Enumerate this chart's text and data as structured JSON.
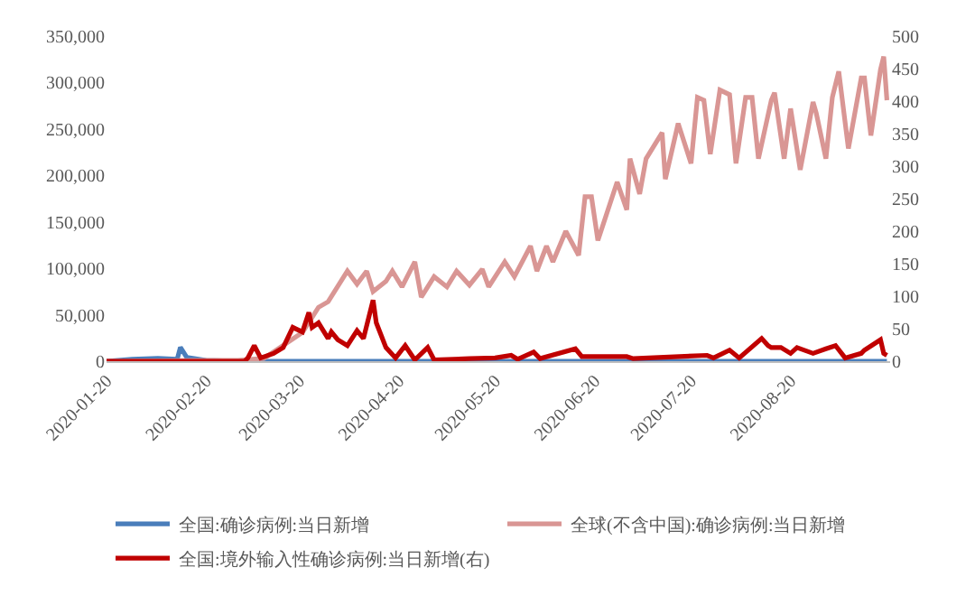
{
  "chart_data": {
    "type": "line",
    "series": [
      {
        "name": "全国:确诊病例:当日新增",
        "color": "#4a7ebb",
        "x": [
          "2020-01-20",
          "2020-01-28",
          "2020-02-05",
          "2020-02-11",
          "2020-02-12",
          "2020-02-14",
          "2020-02-20",
          "2020-03-01",
          "2020-03-20",
          "2020-09-19"
        ],
        "values": [
          0,
          2000,
          3000,
          2000,
          15000,
          4000,
          1000,
          0,
          0,
          0
        ]
      },
      {
        "name": "全球(不含中国):确诊病例:当日新增",
        "color": "#d99694",
        "x": [
          "2020-01-20",
          "2020-02-20",
          "2020-03-01",
          "2020-03-09",
          "2020-03-21",
          "2020-03-26",
          "2020-03-29",
          "2020-04-04",
          "2020-04-07",
          "2020-04-10",
          "2020-04-12",
          "2020-04-16",
          "2020-04-18",
          "2020-04-21",
          "2020-04-25",
          "2020-04-27",
          "2020-05-01",
          "2020-05-05",
          "2020-05-08",
          "2020-05-12",
          "2020-05-16",
          "2020-05-18",
          "2020-05-23",
          "2020-05-26",
          "2020-05-31",
          "2020-06-02",
          "2020-06-05",
          "2020-06-07",
          "2020-06-11",
          "2020-06-15",
          "2020-06-17",
          "2020-06-19",
          "2020-06-21",
          "2020-06-27",
          "2020-06-30",
          "2020-07-01",
          "2020-07-04",
          "2020-07-06",
          "2020-07-11",
          "2020-07-12",
          "2020-07-16",
          "2020-07-20",
          "2020-07-22",
          "2020-07-24",
          "2020-07-26",
          "2020-07-29",
          "2020-08-01",
          "2020-08-03",
          "2020-08-06",
          "2020-08-08",
          "2020-08-10",
          "2020-08-14",
          "2020-08-15",
          "2020-08-18",
          "2020-08-20",
          "2020-08-23",
          "2020-08-27",
          "2020-08-28",
          "2020-08-31",
          "2020-09-02",
          "2020-09-04",
          "2020-09-07",
          "2020-09-11",
          "2020-09-12",
          "2020-09-14",
          "2020-09-17",
          "2020-09-18",
          "2020-09-19"
        ],
        "values": [
          0,
          1000,
          1000,
          3000,
          31000,
          58000,
          64000,
          97000,
          83000,
          97000,
          75000,
          86000,
          97000,
          80000,
          107000,
          69000,
          91000,
          80000,
          97000,
          82000,
          99000,
          80000,
          107000,
          91000,
          124000,
          97000,
          124000,
          107000,
          140000,
          114000,
          177000,
          177000,
          130000,
          193000,
          163000,
          218000,
          180000,
          218000,
          246000,
          196000,
          256000,
          213000,
          284000,
          281000,
          223000,
          292000,
          287000,
          213000,
          284000,
          284000,
          218000,
          281000,
          289000,
          218000,
          272000,
          206000,
          279000,
          267000,
          218000,
          284000,
          312000,
          229000,
          305000,
          305000,
          243000,
          314000,
          328000,
          281000
        ]
      },
      {
        "name": "全国:境外输入性确诊病例:当日新增(右)",
        "color": "#c00000",
        "axis": "y2",
        "x": [
          "2020-01-20",
          "2020-03-03",
          "2020-03-04",
          "2020-03-06",
          "2020-03-08",
          "2020-03-12",
          "2020-03-15",
          "2020-03-18",
          "2020-03-21",
          "2020-03-23",
          "2020-03-24",
          "2020-03-26",
          "2020-03-29",
          "2020-03-30",
          "2020-04-01",
          "2020-04-04",
          "2020-04-07",
          "2020-04-09",
          "2020-04-12",
          "2020-04-13",
          "2020-04-16",
          "2020-04-19",
          "2020-04-22",
          "2020-04-25",
          "2020-04-29",
          "2020-05-01",
          "2020-05-12",
          "2020-05-20",
          "2020-05-25",
          "2020-05-27",
          "2020-06-01",
          "2020-06-03",
          "2020-06-14",
          "2020-06-16",
          "2020-06-30",
          "2020-07-02",
          "2020-07-25",
          "2020-07-27",
          "2020-08-01",
          "2020-08-04",
          "2020-08-11",
          "2020-08-13",
          "2020-08-14",
          "2020-08-17",
          "2020-08-20",
          "2020-08-22",
          "2020-08-27",
          "2020-08-31",
          "2020-09-03",
          "2020-09-06",
          "2020-09-11",
          "2020-09-12",
          "2020-09-17",
          "2020-09-18",
          "2020-09-19"
        ],
        "values": [
          0,
          0,
          5,
          24,
          5,
          12,
          21,
          52,
          45,
          75,
          52,
          59,
          35,
          45,
          33,
          24,
          47,
          35,
          94,
          59,
          21,
          5,
          24,
          2,
          21,
          2,
          4,
          5,
          9,
          3,
          14,
          4,
          19,
          7,
          7,
          4,
          9,
          5,
          17,
          5,
          35,
          24,
          21,
          21,
          12,
          21,
          12,
          19,
          24,
          5,
          12,
          17,
          33,
          12,
          9
        ]
      }
    ],
    "xlim": [
      "2020-01-20",
      "2020-09-20"
    ],
    "xticks": [
      "2020-01-20",
      "2020-02-20",
      "2020-03-20",
      "2020-04-20",
      "2020-05-20",
      "2020-06-20",
      "2020-07-20",
      "2020-08-20"
    ],
    "ylim": [
      0,
      350000
    ],
    "yticks": [
      {
        "value": 0,
        "label": "0"
      },
      {
        "value": 50000,
        "label": "50,000"
      },
      {
        "value": 100000,
        "label": "100,000"
      },
      {
        "value": 150000,
        "label": "150,000"
      },
      {
        "value": 200000,
        "label": "200,000"
      },
      {
        "value": 250000,
        "label": "250,000"
      },
      {
        "value": 300000,
        "label": "300,000"
      },
      {
        "value": 350000,
        "label": "350,000"
      }
    ],
    "y2lim": [
      0,
      500
    ],
    "y2ticks": [
      0,
      50,
      100,
      150,
      200,
      250,
      300,
      350,
      400,
      450,
      500
    ],
    "legend": "bottom",
    "marker": "none",
    "line_style": "solid"
  }
}
